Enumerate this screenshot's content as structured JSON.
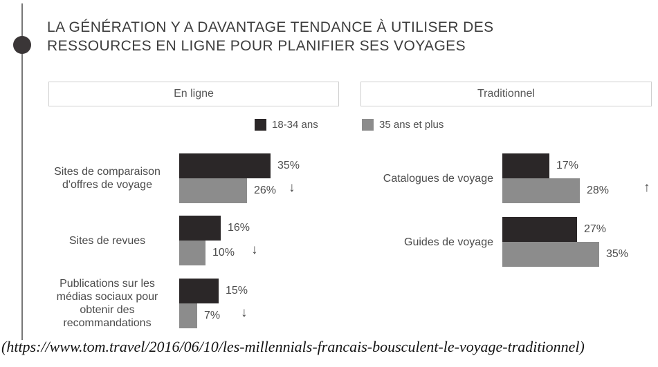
{
  "title": {
    "line1": "LA GÉNÉRATION Y A DAVANTAGE TENDANCE À UTILISER DES",
    "line2": "RESSOURCES EN LIGNE POUR PLANIFIER SES VOYAGES"
  },
  "panels": {
    "online_label": "En ligne",
    "traditional_label": "Traditionnel"
  },
  "legend": {
    "items": [
      {
        "label": "18-34 ans",
        "color": "#2b2728"
      },
      {
        "label": "35 ans et plus",
        "color": "#8c8c8c"
      }
    ]
  },
  "colors": {
    "age_18_34": "#2b2728",
    "age_35_plus": "#8c8c8c"
  },
  "icons": {
    "down_arrow": "↓",
    "up_arrow": "↑"
  },
  "chart_data": [
    {
      "type": "bar",
      "panel": "En ligne",
      "orientation": "horizontal",
      "unit": "%",
      "categories": [
        "Sites de comparaison d'offres de voyage",
        "Sites de revues",
        "Publications sur les médias sociaux pour obtenir des recommandations"
      ],
      "series": [
        {
          "name": "18-34 ans",
          "values": [
            35,
            16,
            15
          ]
        },
        {
          "name": "35 ans et plus",
          "values": [
            26,
            10,
            7
          ]
        }
      ],
      "trend_vs_older": [
        "down",
        "down",
        "down"
      ],
      "xlim": [
        0,
        40
      ],
      "value_labels": true,
      "legend_position": "top",
      "grid": false
    },
    {
      "type": "bar",
      "panel": "Traditionnel",
      "orientation": "horizontal",
      "unit": "%",
      "categories": [
        "Catalogues de voyage",
        "Guides de voyage"
      ],
      "series": [
        {
          "name": "18-34 ans",
          "values": [
            17,
            27
          ]
        },
        {
          "name": "35 ans et plus",
          "values": [
            28,
            35
          ]
        }
      ],
      "trend_vs_older": [
        "up",
        null
      ],
      "xlim": [
        0,
        40
      ],
      "value_labels": true,
      "legend_position": "top",
      "grid": false
    }
  ],
  "source_citation": "(https://www.tom.travel/2016/06/10/les-millennials-francais-bousculent-le-voyage-traditionnel)"
}
